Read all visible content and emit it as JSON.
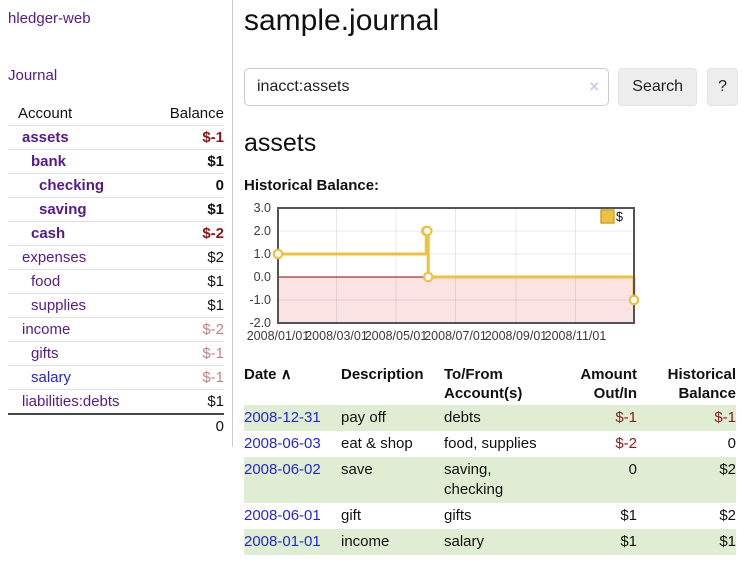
{
  "app": {
    "title": "hledger-web",
    "nav_journal": "Journal"
  },
  "icons": {
    "sort_asc": "∧",
    "clear_search": "×"
  },
  "colors": {
    "link_purple": "#551a8b",
    "link_blue": "#2626d8",
    "negative_strong": "#8b1414",
    "negative_muted": "#c08484",
    "row_green": "#dfeed3",
    "chart_line": "#EDC240"
  },
  "sidebar": {
    "account_header": "Account",
    "balance_header": "Balance",
    "accounts": [
      {
        "name": "assets",
        "indent": 1,
        "bold": true,
        "link": "purple",
        "balance": "$-1",
        "balance_style": "neg-strong"
      },
      {
        "name": "bank",
        "indent": 2,
        "bold": true,
        "link": "purple",
        "balance": "$1",
        "balance_style": "pos-strong"
      },
      {
        "name": "checking",
        "indent": 3,
        "bold": true,
        "link": "purple",
        "balance": "0",
        "balance_style": "pos-strong"
      },
      {
        "name": "saving",
        "indent": 3,
        "bold": true,
        "link": "purple",
        "balance": "$1",
        "balance_style": "pos-strong"
      },
      {
        "name": "cash",
        "indent": 2,
        "bold": true,
        "link": "purple",
        "balance": "$-2",
        "balance_style": "neg-strong"
      },
      {
        "name": "expenses",
        "indent": 1,
        "bold": false,
        "link": "purple",
        "balance": "$2",
        "balance_style": "pos"
      },
      {
        "name": "food",
        "indent": 2,
        "bold": false,
        "link": "purple",
        "balance": "$1",
        "balance_style": "pos"
      },
      {
        "name": "supplies",
        "indent": 2,
        "bold": false,
        "link": "purple",
        "balance": "$1",
        "balance_style": "pos"
      },
      {
        "name": "income",
        "indent": 1,
        "bold": false,
        "link": "purple",
        "balance": "$-2",
        "balance_style": "neg-muted"
      },
      {
        "name": "gifts",
        "indent": 2,
        "bold": false,
        "link": "purple",
        "balance": "$-1",
        "balance_style": "neg-muted"
      },
      {
        "name": "salary",
        "indent": 2,
        "bold": false,
        "link": "blue",
        "balance": "$-1",
        "balance_style": "neg-muted"
      },
      {
        "name": "liabilities:debts",
        "indent": 1,
        "bold": false,
        "link": "purple",
        "balance": "$1",
        "balance_style": "pos"
      }
    ],
    "total": "0"
  },
  "main": {
    "title": "sample.journal",
    "search": {
      "value": "inacct:assets",
      "button_label": "Search",
      "help_label": "?"
    },
    "account_heading": "assets",
    "chart_label": "Historical Balance:"
  },
  "chart_data": {
    "type": "line",
    "step": true,
    "title": "Historical Balance",
    "series": [
      {
        "name": "$",
        "color": "#EDC240",
        "x": [
          "2008-01-01",
          "2008-06-01",
          "2008-06-02",
          "2008-06-03",
          "2008-12-31"
        ],
        "values": [
          1,
          2,
          2,
          0,
          -1
        ]
      }
    ],
    "xlim": [
      "2008-01-01",
      "2008-12-31"
    ],
    "ylim": [
      -2,
      3
    ],
    "yticks": [
      "3.0",
      "2.0",
      "1.0",
      "0.0",
      "-1.0",
      "-2.0"
    ],
    "xticks": [
      "2008/01/01",
      "2008/03/01",
      "2008/05/01",
      "2008/07/01",
      "2008/09/01",
      "2008/11/01"
    ],
    "legend": {
      "label": "$",
      "position": "top-right"
    },
    "grid": true,
    "negative_region_fill": "#fbe3e3",
    "zero_line_color": "#8b0000"
  },
  "register": {
    "columns": [
      "Date",
      "Description",
      "To/From Account(s)",
      "Amount Out/In",
      "Historical Balance"
    ],
    "rows": [
      {
        "date": "2008-12-31",
        "description": "pay off",
        "accounts": "debts",
        "amount": "$-1",
        "amount_neg": true,
        "balance": "$-1",
        "balance_neg": true
      },
      {
        "date": "2008-06-03",
        "description": "eat & shop",
        "accounts": "food, supplies",
        "amount": "$-2",
        "amount_neg": true,
        "balance": "0",
        "balance_neg": false
      },
      {
        "date": "2008-06-02",
        "description": "save",
        "accounts": "saving, checking",
        "amount": "0",
        "amount_neg": false,
        "balance": "$2",
        "balance_neg": false
      },
      {
        "date": "2008-06-01",
        "description": "gift",
        "accounts": "gifts",
        "amount": "$1",
        "amount_neg": false,
        "balance": "$2",
        "balance_neg": false
      },
      {
        "date": "2008-01-01",
        "description": "income",
        "accounts": "salary",
        "amount": "$1",
        "amount_neg": false,
        "balance": "$1",
        "balance_neg": false
      }
    ]
  }
}
